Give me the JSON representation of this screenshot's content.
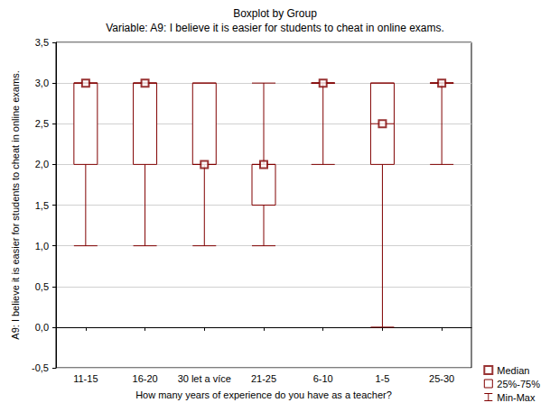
{
  "chart_data": {
    "type": "boxplot",
    "title": "Boxplot by Group",
    "subtitle": "Variable: A9: I believe it is easier for students to cheat in online exams.",
    "x_label": "How many years of experience do you have as a teacher?",
    "y_label": "A9: I believe it is easier for students to cheat in online exams.",
    "categories": [
      "11-15",
      "16-20",
      "30 let a více",
      "21-25",
      "6-10",
      "1-5",
      "25-30"
    ],
    "values": [
      [
        1,
        2,
        3,
        3,
        3
      ],
      [
        1,
        2,
        3,
        3,
        3
      ],
      [
        1,
        2,
        2,
        3,
        3
      ],
      [
        1,
        1.5,
        2,
        2,
        3
      ],
      [
        2,
        3,
        3,
        3,
        3
      ],
      [
        0,
        2,
        2.5,
        3,
        3
      ],
      [
        2,
        3,
        3,
        3,
        3
      ]
    ],
    "color": "#800000",
    "ylim": [
      -0.5,
      3.5
    ],
    "yticks": [
      {
        "value": -0.5,
        "label": "-0,5"
      },
      {
        "value": 0,
        "label": "0,0"
      },
      {
        "value": 0.5,
        "label": "0,5"
      },
      {
        "value": 1,
        "label": "1,0"
      },
      {
        "value": 1.5,
        "label": "1,5"
      },
      {
        "value": 2,
        "label": "2,0"
      },
      {
        "value": 2.5,
        "label": "2,5"
      },
      {
        "value": 3,
        "label": "3,0"
      },
      {
        "value": 3.5,
        "label": "3,5"
      }
    ],
    "grid": true,
    "legend": "bottom right",
    "legend_labels": [
      "Median",
      "25%-75%",
      "Min-Max"
    ]
  }
}
